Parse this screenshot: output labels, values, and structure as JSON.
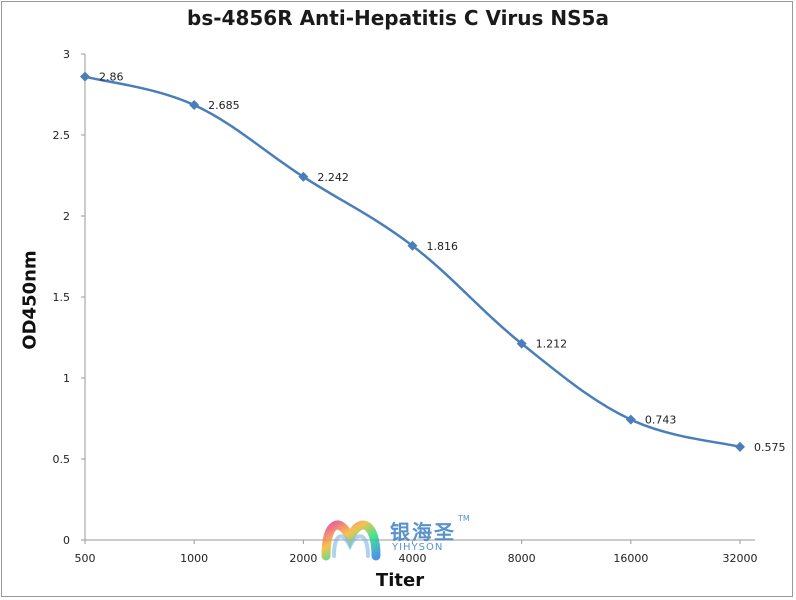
{
  "chart_data": {
    "type": "line",
    "title": "bs-4856R Anti-Hepatitis C Virus NS5a",
    "xlabel": "Titer",
    "ylabel": "OD450nm",
    "categories": [
      "500",
      "1000",
      "2000",
      "4000",
      "8000",
      "16000",
      "32000"
    ],
    "series": [
      {
        "values": [
          2.86,
          2.685,
          2.242,
          1.816,
          1.212,
          0.743,
          0.575
        ]
      }
    ],
    "data_labels": [
      "2.86",
      "2.685",
      "2.242",
      "1.816",
      "1.212",
      "0.743",
      "0.575"
    ],
    "yticks": [
      "0",
      "0.5",
      "1",
      "1.5",
      "2",
      "2.5",
      "3"
    ],
    "ylim": [
      0,
      3
    ],
    "grid": false,
    "legend": "none",
    "line_color": "#4a7ebb",
    "marker": "diamond"
  },
  "watermark": {
    "cn": "银海圣",
    "en": "YIHYSON",
    "tm": "TM"
  }
}
